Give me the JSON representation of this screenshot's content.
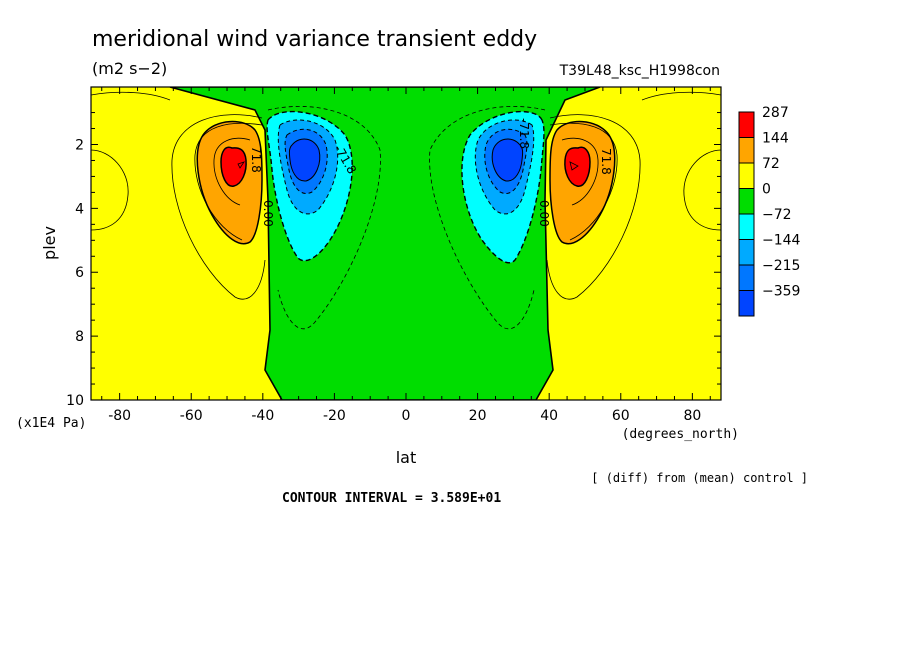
{
  "chart_data": {
    "type": "heatmap",
    "title": "meridional wind variance transient eddy",
    "units": "(m2 s−2)",
    "run_label": "T39L48_ksc_H1998con",
    "xlabel": "lat",
    "x_units": "(degrees_north)",
    "ylabel": "plev",
    "y_units": "(x1E4 Pa)",
    "xlim": [
      -88,
      88
    ],
    "ylim": [
      10,
      0.2
    ],
    "x_ticks": [
      -80,
      -60,
      -40,
      -20,
      0,
      20,
      40,
      60,
      80
    ],
    "y_ticks": [
      2,
      4,
      6,
      8,
      10
    ],
    "grid": false,
    "legend_position": "right",
    "colorbar": {
      "labels": [
        "287",
        "144",
        "72",
        "0",
        "−72",
        "−144",
        "−215",
        "−359"
      ],
      "colors": [
        "#ff0000",
        "#ffa500",
        "#ffff00",
        "#00dd00",
        "#00ffff",
        "#00aaff",
        "#0077ff",
        "#0044ff"
      ]
    },
    "contour_labels": [
      "71.8",
      "0.00",
      "-71.8"
    ],
    "features": [
      {
        "kind": "max",
        "lat": -47,
        "plev": 2.6,
        "value": 287
      },
      {
        "kind": "max",
        "lat": 47,
        "plev": 2.6,
        "value": 287
      },
      {
        "kind": "min",
        "lat": -30,
        "plev": 2.6,
        "value": -359
      },
      {
        "kind": "min",
        "lat": 29,
        "plev": 2.6,
        "value": -359
      }
    ],
    "note": "[ (diff) from (mean) control ]",
    "contour_interval_text": "CONTOUR INTERVAL = 3.589E+01"
  }
}
